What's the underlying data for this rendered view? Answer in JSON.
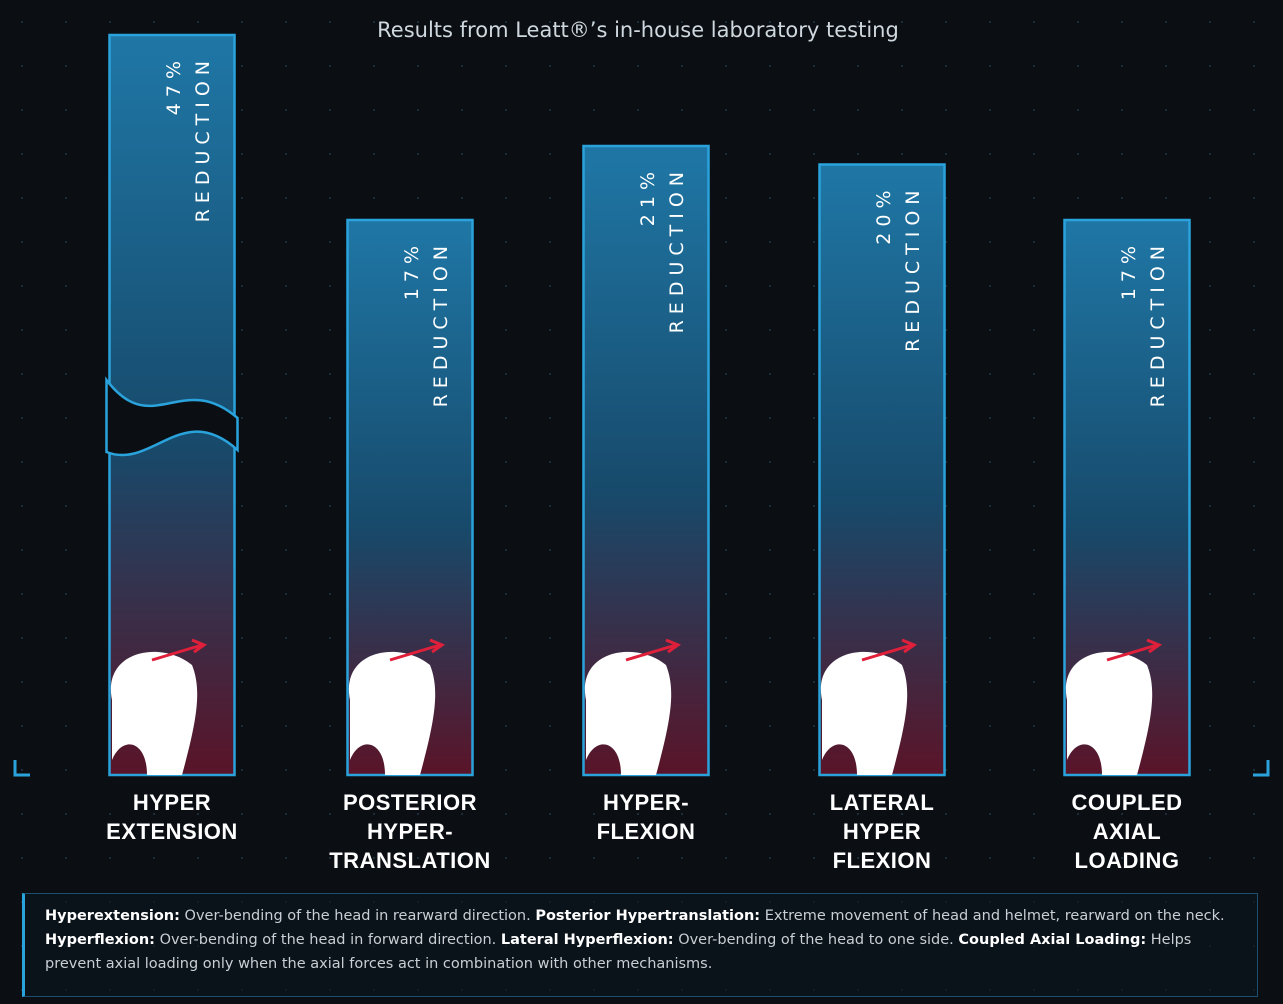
{
  "chart_data": {
    "type": "bar",
    "title": "Results from Leatt®’s in-house laboratory testing",
    "categories": [
      "HYPER\nEXTENSION",
      "POSTERIOR\nHYPER-\nTRANSLATION",
      "HYPER-\nFLEXION",
      "LATERAL\nHYPER\nFLEXION",
      "COUPLED\nAXIAL\nLOADING"
    ],
    "values": [
      47,
      17,
      21,
      20,
      17
    ],
    "value_labels": [
      "47%",
      "17%",
      "21%",
      "20%",
      "17%"
    ],
    "value_caption": "REDUCTION",
    "color": "#2aa3dc",
    "ylim": [
      -13,
      27
    ],
    "axis_break": true
  },
  "footer": [
    {
      "term": "Hyperextension:",
      "text": "Over-bending of the head in rearward direction."
    },
    {
      "term": "Posterior Hypertranslation:",
      "text": "Extreme movement of head and helmet, rearward on the neck."
    },
    {
      "term": "Hyperflexion:",
      "text": "Over-bending of the head in forward direction."
    },
    {
      "term": "Lateral Hyperflexion:",
      "text": "Over-bending of the head to one side."
    },
    {
      "term": "Coupled Axial Loading:",
      "text": "Helps prevent axial loading only when the axial forces act in combination with other mechanisms."
    }
  ]
}
